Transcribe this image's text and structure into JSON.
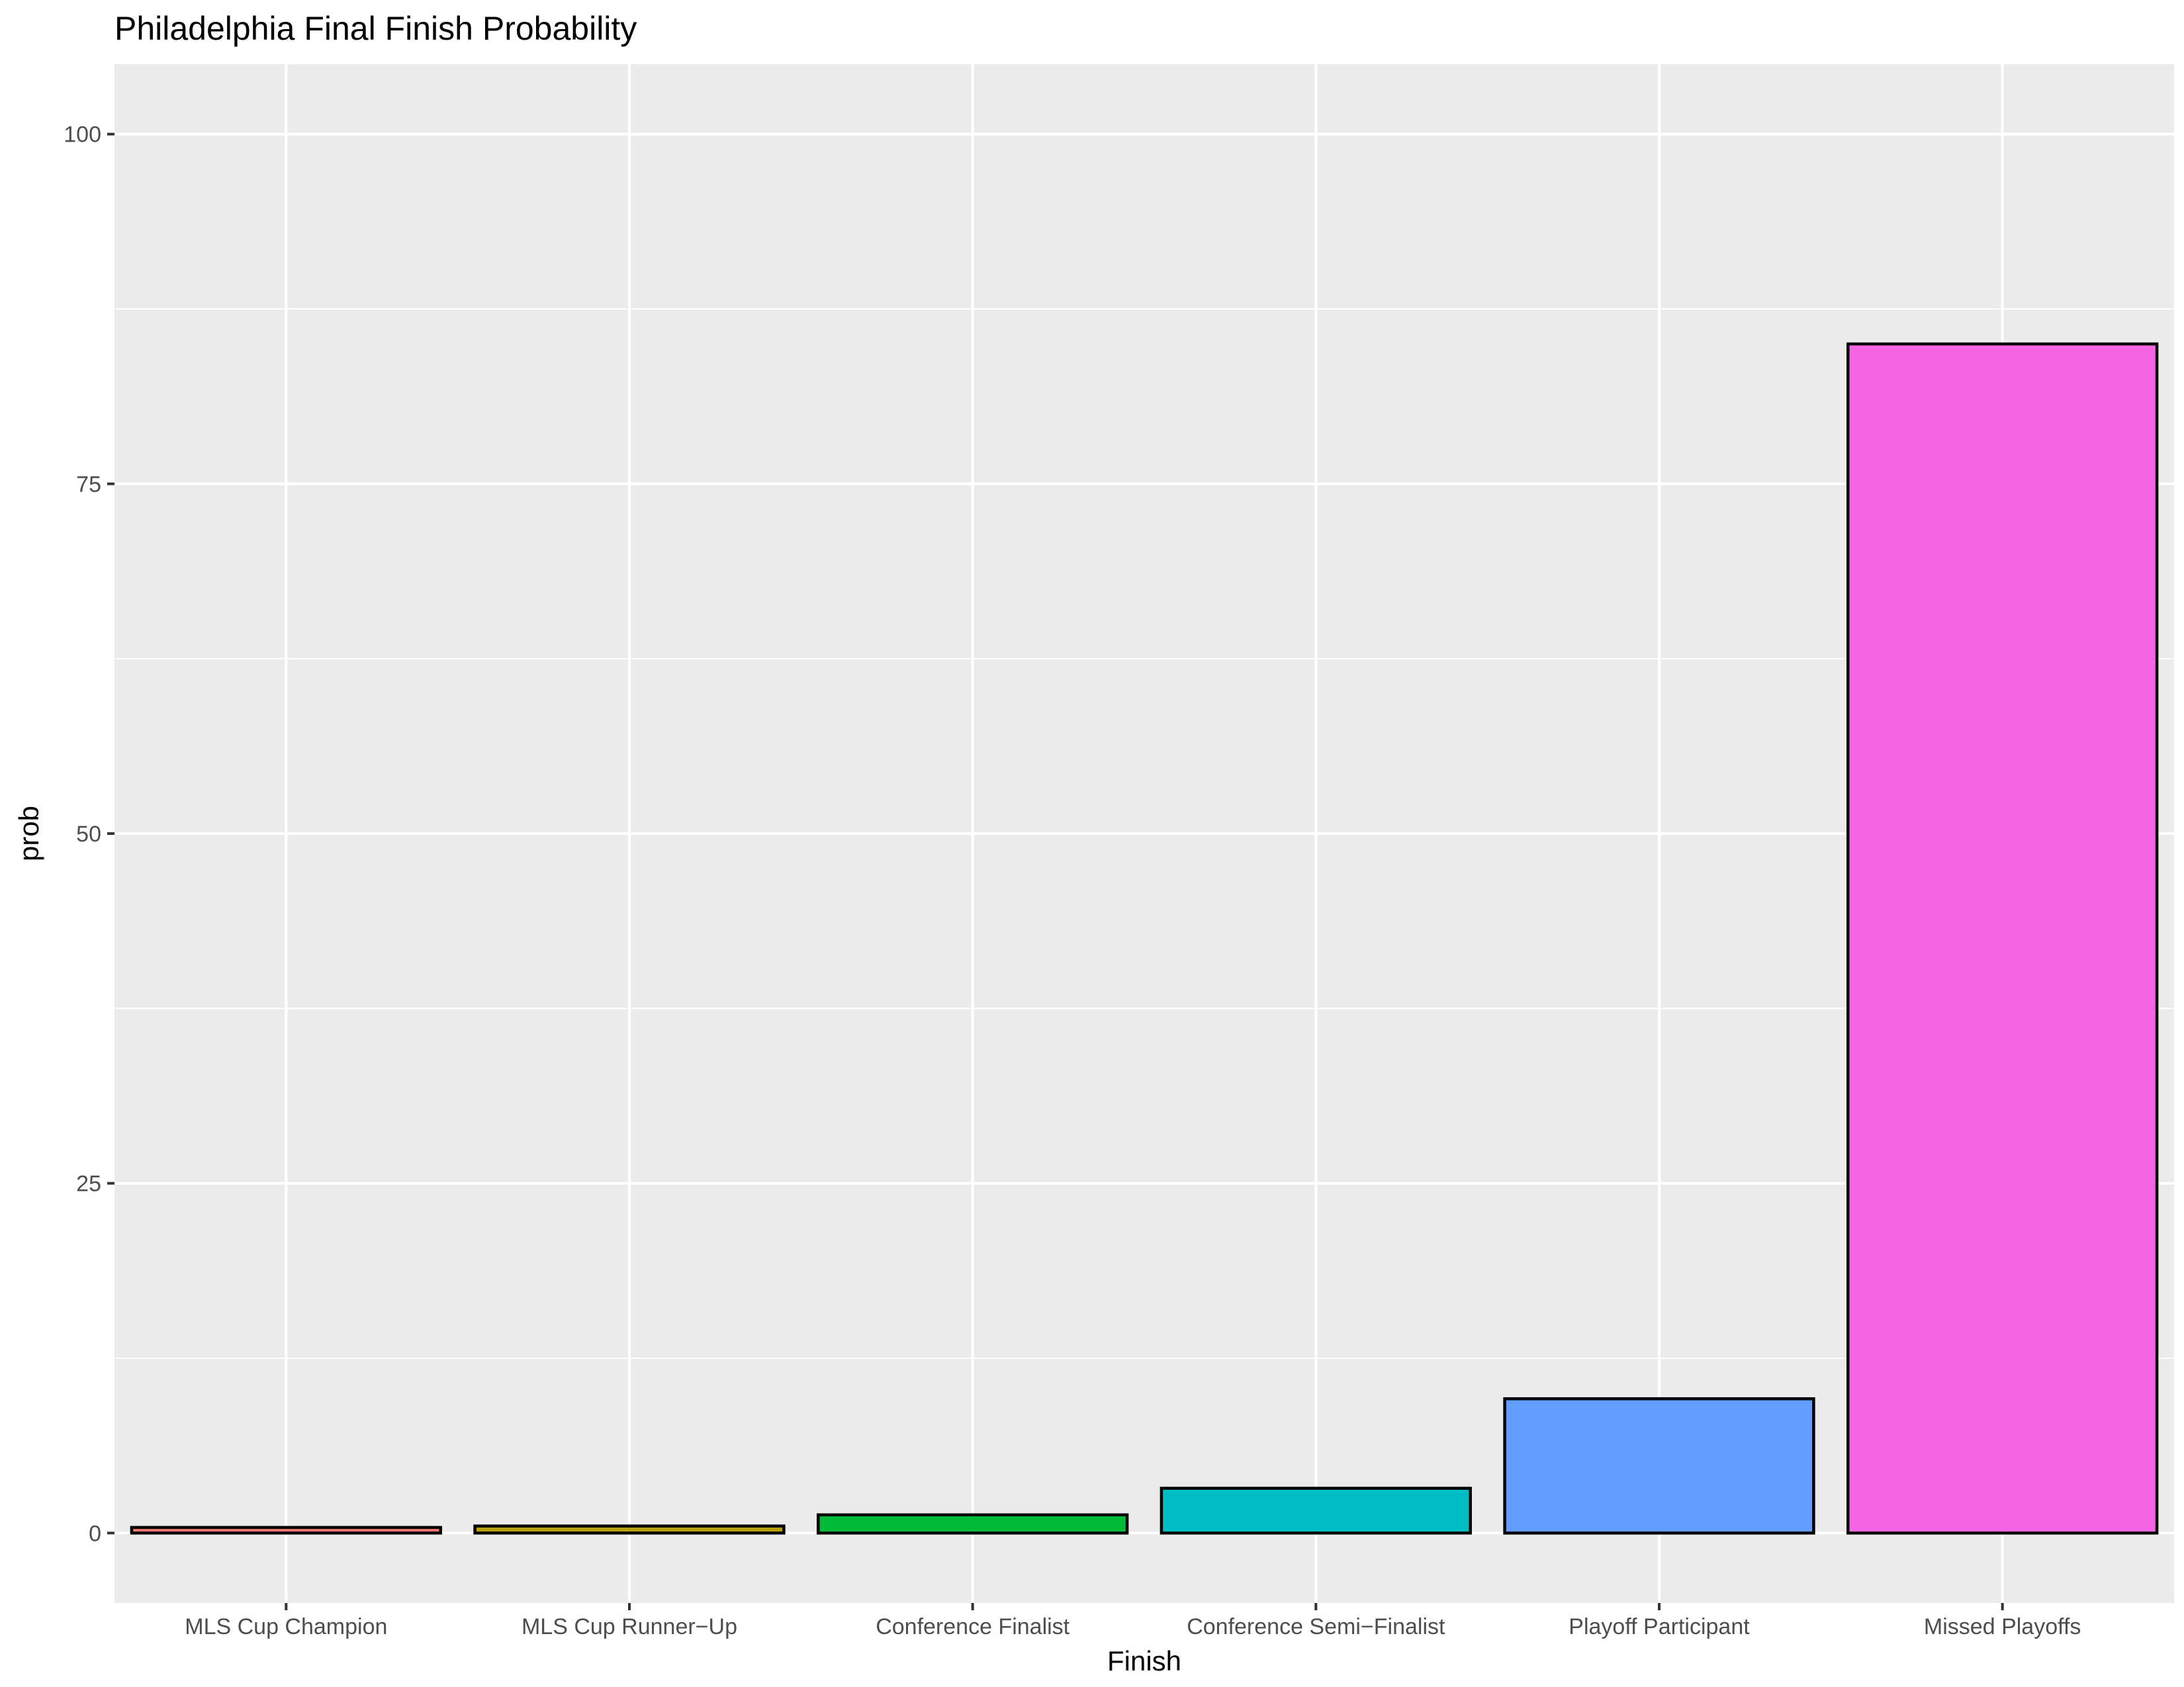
{
  "chart_data": {
    "type": "bar",
    "title": "Philadelphia Final Finish Probability",
    "xlabel": "Finish",
    "ylabel": "prob",
    "categories": [
      "MLS Cup Champion",
      "MLS Cup Runner−Up",
      "Conference Finalist",
      "Conference Semi−Finalist",
      "Playoff Participant",
      "Missed Playoffs"
    ],
    "values": [
      0.4,
      0.5,
      1.3,
      3.2,
      9.6,
      85.0
    ],
    "colors": [
      "#F8766D",
      "#B79F00",
      "#00BA38",
      "#00BFC4",
      "#619CFF",
      "#F564E3"
    ],
    "ylim": [
      -5,
      105
    ],
    "yticks": [
      0,
      25,
      50,
      75,
      100
    ],
    "grid": true,
    "legend": "none",
    "panel_background": "#EBEBEB"
  }
}
